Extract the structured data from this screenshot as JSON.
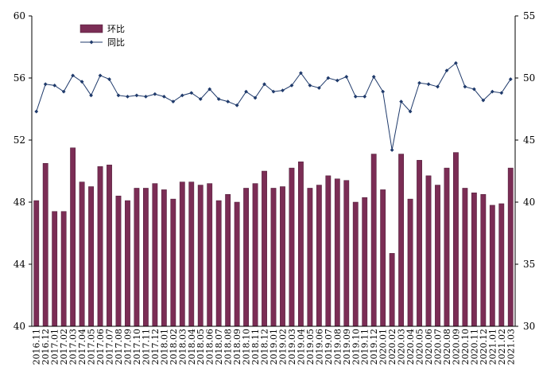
{
  "chart_data": {
    "type": "bar+line",
    "categories": [
      "2016.11",
      "2016.12",
      "2017.01",
      "2017.02",
      "2017.03",
      "2017.04",
      "2017.05",
      "2017.06",
      "2017.07",
      "2017.08",
      "2017.09",
      "2017.10",
      "2017.11",
      "2017.12",
      "2018.01",
      "2018.02",
      "2018.03",
      "2018.04",
      "2018.05",
      "2018.06",
      "2018.07",
      "2018.08",
      "2018.09",
      "2018.10",
      "2018.11",
      "2018.12",
      "2019.01",
      "2019.02",
      "2019.03",
      "2019.04",
      "2019.05",
      "2019.06",
      "2019.07",
      "2019.08",
      "2019.09",
      "2019.10",
      "2019.11",
      "2019.12",
      "2020.01",
      "2020.02",
      "2020.03",
      "2020.04",
      "2020.05",
      "2020.06",
      "2020.07",
      "2020.08",
      "2020.09",
      "2020.10",
      "2020.11",
      "2020.12",
      "2021.01",
      "2021.02",
      "2021.03"
    ],
    "series": [
      {
        "name": "环比",
        "type": "bar",
        "axis": "left",
        "color": "#7b2d55",
        "values": [
          48.1,
          50.5,
          47.4,
          47.4,
          51.5,
          49.3,
          49.0,
          50.3,
          50.4,
          48.4,
          48.1,
          48.9,
          48.9,
          49.2,
          48.8,
          48.2,
          49.3,
          49.3,
          49.1,
          49.2,
          48.1,
          48.5,
          48.0,
          48.9,
          49.2,
          50.0,
          48.9,
          49.0,
          50.2,
          50.6,
          48.9,
          49.1,
          49.7,
          49.5,
          49.4,
          48.0,
          48.3,
          51.1,
          48.8,
          44.7,
          51.1,
          48.2,
          50.7,
          49.7,
          49.1,
          50.2,
          51.2,
          48.9,
          48.6,
          48.5,
          47.8,
          47.9,
          50.2
        ]
      },
      {
        "name": "同比",
        "type": "line",
        "axis": "right",
        "color": "#1f3a6b",
        "values": [
          47.3,
          49.5,
          49.4,
          48.9,
          50.2,
          49.7,
          48.6,
          50.2,
          49.9,
          48.6,
          48.5,
          48.6,
          48.5,
          48.7,
          48.5,
          48.1,
          48.6,
          48.8,
          48.3,
          49.1,
          48.3,
          48.1,
          47.8,
          48.9,
          48.4,
          49.5,
          48.9,
          49.0,
          49.4,
          50.4,
          49.4,
          49.2,
          50.0,
          49.8,
          50.1,
          48.5,
          48.5,
          50.1,
          48.9,
          44.2,
          48.1,
          47.3,
          49.6,
          49.5,
          49.3,
          50.6,
          51.2,
          49.3,
          49.1,
          48.2,
          48.9,
          48.8,
          49.9
        ]
      }
    ],
    "yleft": {
      "min": 40,
      "max": 60,
      "ticks": [
        40,
        44,
        48,
        52,
        56,
        60
      ]
    },
    "yright": {
      "min": 30,
      "max": 55,
      "ticks": [
        30,
        35,
        40,
        45,
        50,
        55
      ]
    },
    "legend_placement": "top-left",
    "grid": false
  }
}
